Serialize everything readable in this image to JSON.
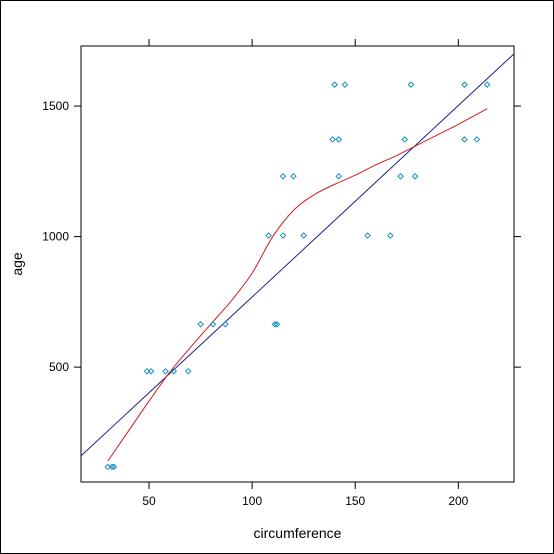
{
  "chart_data": {
    "type": "scatter",
    "xlabel": "circumference",
    "ylabel": "age",
    "xlim": [
      17,
      227
    ],
    "ylim": [
      60,
      1730
    ],
    "x_ticks": [
      50,
      100,
      150,
      200
    ],
    "y_ticks": [
      500,
      1000,
      1500
    ],
    "grid": false,
    "colors": {
      "points": "#1a8fc4",
      "regression_line": "#1e1e8c",
      "smooth_line": "#cc1f1f",
      "axis": "#000000"
    },
    "points": [
      {
        "x": 30,
        "y": 118
      },
      {
        "x": 32,
        "y": 118
      },
      {
        "x": 33,
        "y": 118
      },
      {
        "x": 49,
        "y": 484
      },
      {
        "x": 51,
        "y": 484
      },
      {
        "x": 58,
        "y": 484
      },
      {
        "x": 62,
        "y": 484
      },
      {
        "x": 69,
        "y": 484
      },
      {
        "x": 75,
        "y": 664
      },
      {
        "x": 81,
        "y": 664
      },
      {
        "x": 87,
        "y": 664
      },
      {
        "x": 111,
        "y": 664
      },
      {
        "x": 112,
        "y": 664
      },
      {
        "x": 108,
        "y": 1004
      },
      {
        "x": 115,
        "y": 1004
      },
      {
        "x": 125,
        "y": 1004
      },
      {
        "x": 156,
        "y": 1004
      },
      {
        "x": 167,
        "y": 1004
      },
      {
        "x": 115,
        "y": 1231
      },
      {
        "x": 120,
        "y": 1231
      },
      {
        "x": 142,
        "y": 1231
      },
      {
        "x": 172,
        "y": 1231
      },
      {
        "x": 179,
        "y": 1231
      },
      {
        "x": 139,
        "y": 1372
      },
      {
        "x": 142,
        "y": 1372
      },
      {
        "x": 174,
        "y": 1372
      },
      {
        "x": 203,
        "y": 1372
      },
      {
        "x": 209,
        "y": 1372
      },
      {
        "x": 140,
        "y": 1582
      },
      {
        "x": 145,
        "y": 1582
      },
      {
        "x": 177,
        "y": 1582
      },
      {
        "x": 203,
        "y": 1582
      },
      {
        "x": 214,
        "y": 1582
      }
    ],
    "regression_line": {
      "x": [
        17,
        227
      ],
      "y": [
        160,
        1700
      ]
    },
    "smooth_line": {
      "x": [
        30,
        40,
        50,
        60,
        70,
        80,
        90,
        100,
        110,
        120,
        130,
        140,
        150,
        160,
        170,
        180,
        190,
        200,
        214
      ],
      "y": [
        140,
        255,
        370,
        480,
        575,
        665,
        755,
        860,
        1000,
        1100,
        1160,
        1200,
        1235,
        1275,
        1310,
        1350,
        1390,
        1430,
        1490
      ]
    }
  }
}
